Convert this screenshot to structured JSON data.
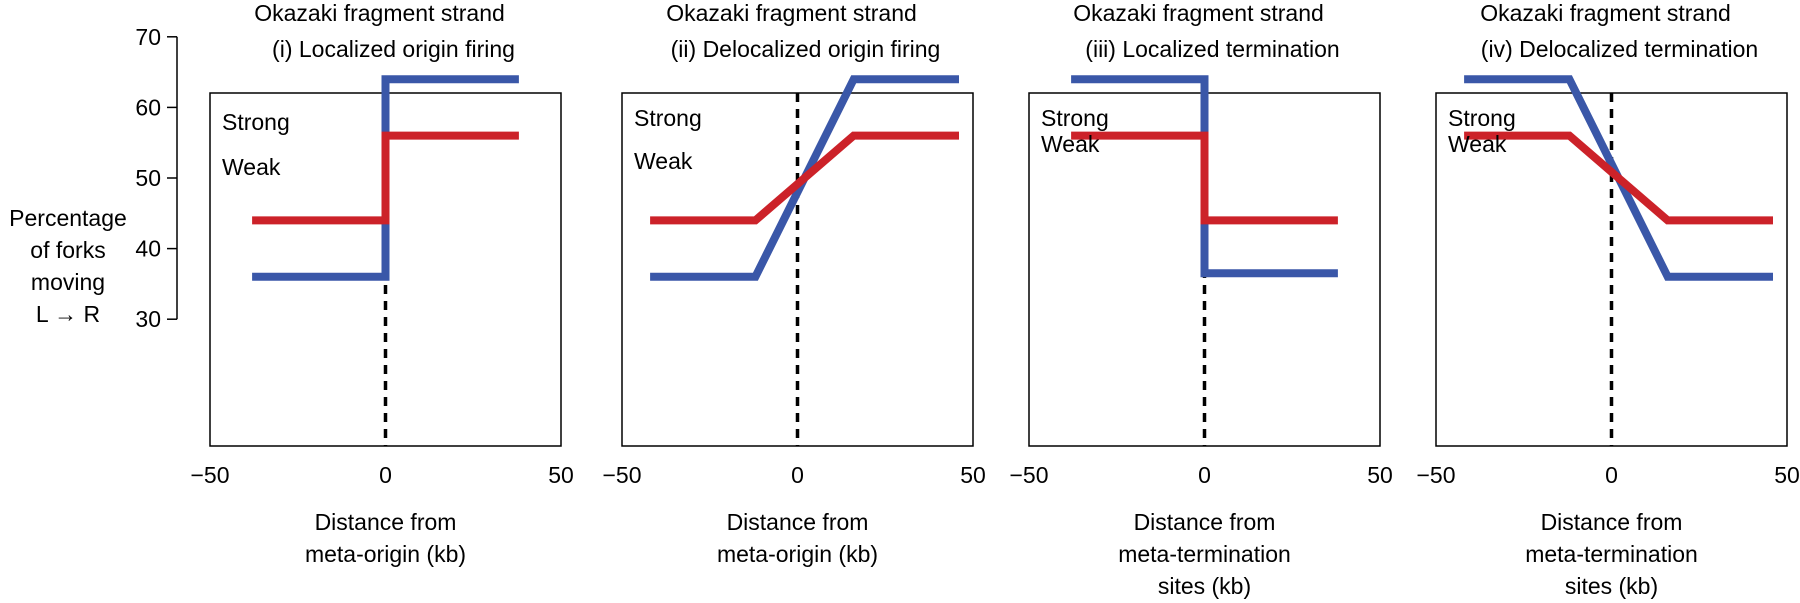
{
  "figure": {
    "ylabel_lines": [
      "Percentage",
      "of forks",
      "moving",
      "L → R"
    ],
    "yticks": [
      30,
      40,
      50,
      60,
      70
    ],
    "ylim": [
      25,
      75
    ],
    "colors": {
      "strong": "#3a57a8",
      "weak": "#cc2229",
      "axis": "#000000",
      "zero_line": "#000000"
    }
  },
  "chart_data": [
    {
      "type": "line",
      "title_lines": [
        "Okazaki fragment strand",
        "(i) Localized origin firing"
      ],
      "xlabel_lines": [
        "Distance from",
        "meta-origin (kb)"
      ],
      "xlim": [
        -50,
        50
      ],
      "xticks": [
        -50,
        0,
        50
      ],
      "xtick_labels": [
        "−50",
        "0",
        "50"
      ],
      "series": [
        {
          "name": "Strong",
          "key": "strong",
          "x": [
            -38,
            0,
            0,
            38
          ],
          "y": [
            36,
            36,
            64,
            64
          ]
        },
        {
          "name": "Weak",
          "key": "weak",
          "x": [
            -38,
            0,
            0,
            38
          ],
          "y": [
            44,
            44,
            56,
            56
          ]
        }
      ]
    },
    {
      "type": "line",
      "title_lines": [
        "Okazaki fragment strand",
        "(ii) Delocalized origin firing"
      ],
      "xlabel_lines": [
        "Distance from",
        "meta-origin (kb)"
      ],
      "xlim": [
        -50,
        50
      ],
      "xticks": [
        -50,
        0,
        50
      ],
      "xtick_labels": [
        "−50",
        "0",
        "50"
      ],
      "series": [
        {
          "name": "Strong",
          "key": "strong",
          "x": [
            -42,
            -12,
            16,
            46
          ],
          "y": [
            36,
            36,
            64,
            64
          ]
        },
        {
          "name": "Weak",
          "key": "weak",
          "x": [
            -42,
            -12,
            16,
            46
          ],
          "y": [
            44,
            44,
            56,
            56
          ]
        }
      ]
    },
    {
      "type": "line",
      "title_lines": [
        "Okazaki fragment strand",
        "(iii) Localized termination"
      ],
      "xlabel_lines": [
        "Distance from",
        "meta-termination",
        "sites (kb)"
      ],
      "xlim": [
        -50,
        50
      ],
      "xticks": [
        -50,
        0,
        50
      ],
      "xtick_labels": [
        "−50",
        "0",
        "50"
      ],
      "series": [
        {
          "name": "Strong",
          "key": "strong",
          "x": [
            -38,
            0,
            0,
            38
          ],
          "y": [
            64,
            64,
            36.5,
            36.5
          ]
        },
        {
          "name": "Weak",
          "key": "weak",
          "x": [
            -38,
            0,
            0,
            38
          ],
          "y": [
            56,
            56,
            44,
            44
          ]
        }
      ]
    },
    {
      "type": "line",
      "title_lines": [
        "Okazaki fragment strand",
        "(iv) Delocalized termination"
      ],
      "xlabel_lines": [
        "Distance from",
        "meta-termination",
        "sites (kb)"
      ],
      "xlim": [
        -50,
        50
      ],
      "xticks": [
        -50,
        0,
        50
      ],
      "xtick_labels": [
        "−50",
        "0",
        "50"
      ],
      "series": [
        {
          "name": "Strong",
          "key": "strong",
          "x": [
            -42,
            -12,
            16,
            46
          ],
          "y": [
            64,
            64,
            36,
            36
          ]
        },
        {
          "name": "Weak",
          "key": "weak",
          "x": [
            -42,
            -12,
            16,
            46
          ],
          "y": [
            56,
            56,
            44,
            44
          ]
        }
      ]
    }
  ]
}
